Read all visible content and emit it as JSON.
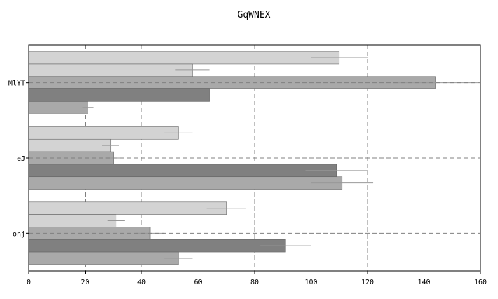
{
  "chart_data": {
    "type": "bar",
    "orientation": "horizontal",
    "title": "GqWNEX",
    "xlabel": "",
    "ylabel": "",
    "xlim": [
      0,
      160
    ],
    "xticks": [
      0,
      20,
      40,
      60,
      80,
      100,
      120,
      140,
      160
    ],
    "grid": true,
    "legend": "none",
    "categories": [
      "MlYT",
      "eJ",
      "onj"
    ],
    "series": [
      {
        "color": "#d3d3d3",
        "values": [
          110,
          53,
          70
        ],
        "errors": [
          10,
          5,
          7
        ]
      },
      {
        "color": "#d3d3d3",
        "values": [
          58,
          29,
          31
        ],
        "errors": [
          6,
          3,
          3
        ]
      },
      {
        "color": "#a9a9a9",
        "values": [
          144,
          30,
          43
        ],
        "errors": [
          15,
          3,
          5
        ]
      },
      {
        "color": "#808080",
        "values": [
          64,
          109,
          91
        ],
        "errors": [
          6,
          11,
          9
        ]
      },
      {
        "color": "#a9a9a9",
        "values": [
          21,
          111,
          53
        ],
        "errors": [
          2,
          11,
          5
        ]
      }
    ]
  }
}
